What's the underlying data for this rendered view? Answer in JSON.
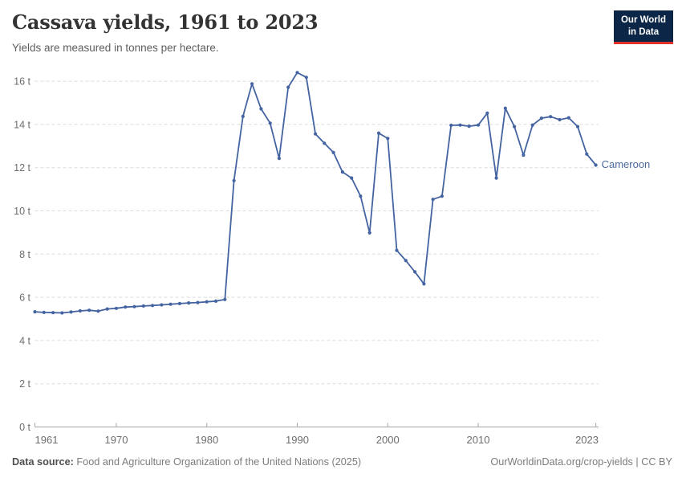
{
  "header": {
    "title": "Cassava yields, 1961 to 2023",
    "subtitle": "Yields are measured in tonnes per hectare.",
    "logo": {
      "line1": "Our World",
      "line2": "in Data"
    }
  },
  "chart_data": {
    "type": "line",
    "title": "Cassava yields, 1961 to 2023",
    "subtitle": "Yields are measured in tonnes per hectare.",
    "unit": "tonnes per hectare",
    "xlim": [
      1961,
      2023
    ],
    "ylim": [
      0,
      16
    ],
    "grid": "horizontal-dashed",
    "legend_position": "end-of-line-label",
    "x": [
      1961,
      1962,
      1963,
      1964,
      1965,
      1966,
      1967,
      1968,
      1969,
      1970,
      1971,
      1972,
      1973,
      1974,
      1975,
      1976,
      1977,
      1978,
      1979,
      1980,
      1981,
      1982,
      1983,
      1984,
      1985,
      1986,
      1987,
      1988,
      1989,
      1990,
      1991,
      1992,
      1993,
      1994,
      1995,
      1996,
      1997,
      1998,
      1999,
      2000,
      2001,
      2002,
      2003,
      2004,
      2005,
      2006,
      2007,
      2008,
      2009,
      2010,
      2011,
      2012,
      2013,
      2014,
      2015,
      2016,
      2017,
      2018,
      2019,
      2020,
      2021,
      2022,
      2023
    ],
    "series": [
      {
        "name": "Cameroon",
        "values": [
          5.33,
          5.3,
          5.29,
          5.28,
          5.32,
          5.37,
          5.4,
          5.36,
          5.46,
          5.49,
          5.55,
          5.57,
          5.6,
          5.62,
          5.65,
          5.68,
          5.71,
          5.74,
          5.76,
          5.79,
          5.82,
          5.9,
          11.4,
          14.37,
          15.88,
          14.72,
          14.06,
          12.43,
          15.72,
          16.4,
          16.18,
          13.56,
          13.13,
          12.7,
          11.8,
          11.52,
          10.68,
          8.98,
          13.6,
          13.35,
          8.17,
          7.7,
          7.18,
          6.62,
          10.53,
          10.68,
          13.96,
          13.97,
          13.92,
          13.97,
          14.52,
          11.52,
          14.75,
          13.9,
          12.58,
          13.97,
          14.29,
          14.36,
          14.22,
          14.31,
          13.9,
          12.63,
          12.12
        ]
      }
    ],
    "y_ticks": [
      0,
      2,
      4,
      6,
      8,
      10,
      12,
      14,
      16
    ],
    "y_tick_labels": [
      "0 t",
      "2 t",
      "4 t",
      "6 t",
      "8 t",
      "10 t",
      "12 t",
      "14 t",
      "16 t"
    ],
    "x_ticks": [
      {
        "year": 1961,
        "label": "1961"
      },
      {
        "year": 1970,
        "label": "1970"
      },
      {
        "year": 1980,
        "label": "1980"
      },
      {
        "year": 1990,
        "label": "1990"
      },
      {
        "year": 2000,
        "label": "2000"
      },
      {
        "year": 2010,
        "label": "2010"
      },
      {
        "year": 2023,
        "label": "2023"
      }
    ],
    "end_label": "Cameroon"
  },
  "colors": {
    "series": "#4463a1",
    "series_label": "#4c6a9c",
    "grid": "#dcdcdc",
    "axis": "#a6a6a6",
    "tick_label": "#6d6d6d",
    "logo_bg": "#0c2647",
    "logo_accent": "#e0322b"
  },
  "footer": {
    "source_label": "Data source:",
    "source_text": " Food and Agriculture Organization of the United Nations (2025)",
    "credit": "OurWorldinData.org/crop-yields | CC BY"
  }
}
